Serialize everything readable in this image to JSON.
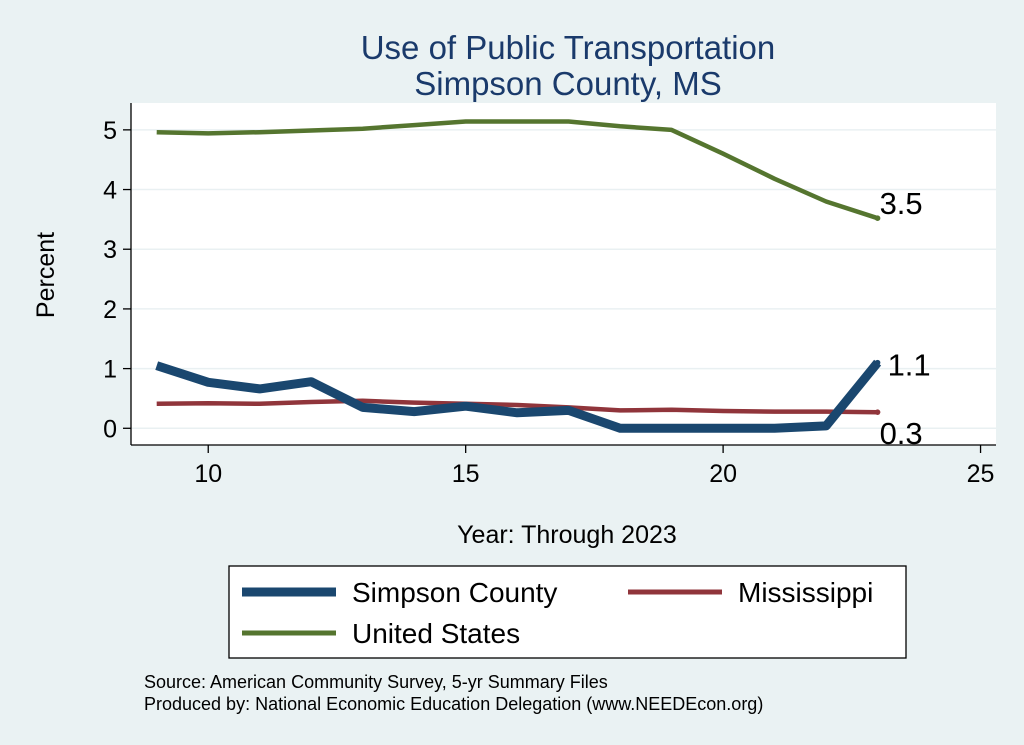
{
  "chart_data": {
    "type": "line",
    "title": [
      "Use of Public Transportation",
      "Simpson County, MS"
    ],
    "xlabel": "Year: Through 2023",
    "ylabel": "Percent",
    "xlim": [
      8.5,
      25.3
    ],
    "ylim": [
      -0.28,
      5.45
    ],
    "x_ticks": [
      10,
      15,
      20,
      25
    ],
    "y_ticks": [
      0,
      1,
      2,
      3,
      4,
      5
    ],
    "grid": "horizontal",
    "legend_position": "bottom",
    "colors": {
      "Simpson County": "#1a476f",
      "Mississippi": "#90353b",
      "United States": "#55752f",
      "background": "#eaf2f3",
      "plot_background": "#ffffff",
      "title": "#1a3a6b"
    },
    "series": [
      {
        "name": "Simpson County",
        "x": [
          9,
          10,
          11,
          12,
          13,
          14,
          15,
          16,
          17,
          18,
          19,
          20,
          21,
          22,
          23
        ],
        "values": [
          1.05,
          0.77,
          0.66,
          0.78,
          0.35,
          0.28,
          0.37,
          0.26,
          0.3,
          0.0,
          0.0,
          0.0,
          0.0,
          0.04,
          1.1
        ],
        "end_label": "1.1"
      },
      {
        "name": "Mississippi",
        "x": [
          9,
          10,
          11,
          12,
          13,
          14,
          15,
          16,
          17,
          18,
          19,
          20,
          21,
          22,
          23
        ],
        "values": [
          0.41,
          0.42,
          0.41,
          0.44,
          0.46,
          0.43,
          0.41,
          0.39,
          0.35,
          0.3,
          0.31,
          0.29,
          0.28,
          0.28,
          0.27
        ],
        "end_label": "0.3"
      },
      {
        "name": "United States",
        "x": [
          9,
          10,
          11,
          12,
          13,
          14,
          15,
          16,
          17,
          18,
          19,
          20,
          21,
          22,
          23
        ],
        "values": [
          4.96,
          4.94,
          4.96,
          4.99,
          5.02,
          5.08,
          5.14,
          5.14,
          5.14,
          5.06,
          5.0,
          4.6,
          4.18,
          3.8,
          3.52
        ],
        "end_label": "3.5"
      }
    ],
    "legend": [
      "Simpson County",
      "Mississippi",
      "United States"
    ],
    "notes": [
      "Source: American Community Survey, 5-yr Summary Files",
      "Produced by: National Economic Education Delegation (www.NEEDEcon.org)"
    ]
  }
}
